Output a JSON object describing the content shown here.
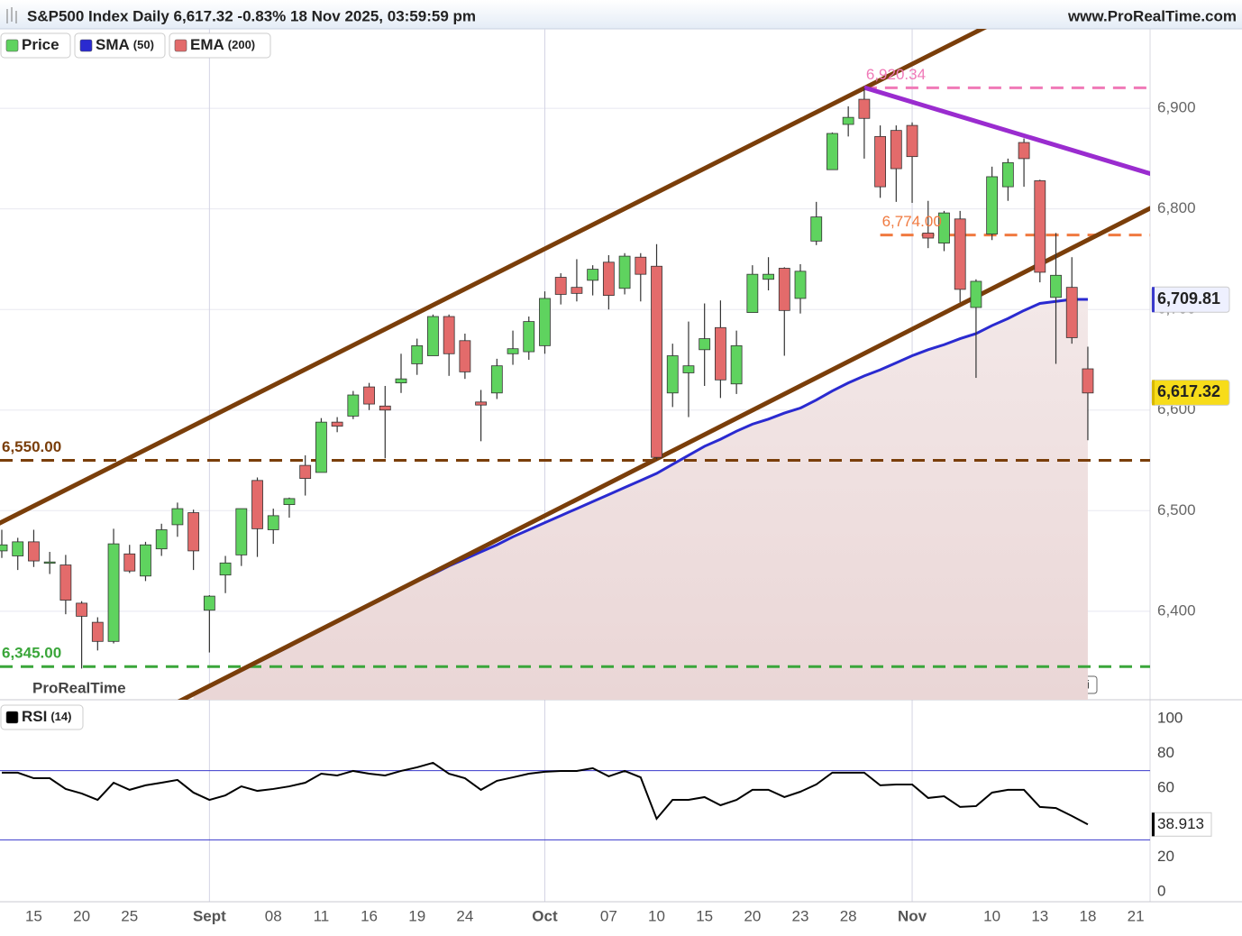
{
  "header": {
    "title": "S&P500 Index Daily 6,617.32 -0.83% 18 Nov 2025, 03:59:59 pm",
    "site": "www.ProRealTime.com"
  },
  "chart_data": [
    {
      "type": "candlestick",
      "watermark": "ProRealTime",
      "grid": true,
      "categories": [
        null,
        null,
        "15",
        null,
        null,
        "20",
        null,
        null,
        "25",
        null,
        null,
        null,
        null,
        "Sept",
        null,
        null,
        null,
        "08",
        null,
        null,
        "11",
        null,
        null,
        "16",
        null,
        null,
        "19",
        null,
        null,
        "24",
        null,
        null,
        null,
        null,
        "Oct",
        null,
        null,
        null,
        "07",
        null,
        null,
        "10",
        null,
        null,
        "15",
        null,
        null,
        "20",
        null,
        null,
        "23",
        null,
        null,
        "28",
        null,
        null,
        null,
        "Nov",
        null,
        null,
        null,
        null,
        "10",
        null,
        null,
        "13",
        null,
        null,
        "18",
        null,
        null,
        "21"
      ],
      "ylim": [
        6312,
        6979
      ],
      "yticks": [
        {
          "value": 6400,
          "label": "6,400"
        },
        {
          "value": 6500,
          "label": "6,500"
        },
        {
          "value": 6600,
          "label": "6,600"
        },
        {
          "value": 6700,
          "label": "6,700"
        },
        {
          "value": 6800,
          "label": "6,800"
        },
        {
          "value": 6900,
          "label": "6,900"
        }
      ],
      "series": [
        {
          "name": "Price",
          "type": "candlestick",
          "up_color": "#5fd35f",
          "down_color": "#e36b6b",
          "color": "#5fd35f",
          "values": [
            [
              6460,
              6481,
              6453,
              6466
            ],
            [
              6455,
              6473,
              6441,
              6469
            ],
            [
              6469,
              6481,
              6444,
              6450
            ],
            [
              6448,
              6459,
              6437,
              6449
            ],
            [
              6446,
              6456,
              6397,
              6411
            ],
            [
              6408,
              6410,
              6343,
              6395
            ],
            [
              6389,
              6394,
              6361,
              6370
            ],
            [
              6370,
              6482,
              6368,
              6467
            ],
            [
              6457,
              6466,
              6438,
              6440
            ],
            [
              6435,
              6469,
              6430,
              6466
            ],
            [
              6462,
              6487,
              6455,
              6481
            ],
            [
              6486,
              6508,
              6474,
              6502
            ],
            [
              6498,
              6501,
              6441,
              6460
            ],
            [
              6401,
              6416,
              6359,
              6415
            ],
            [
              6436,
              6455,
              6418,
              6448
            ],
            [
              6456,
              6502,
              6445,
              6502
            ],
            [
              6530,
              6533,
              6454,
              6482
            ],
            [
              6481,
              6502,
              6467,
              6495
            ],
            [
              6506,
              6513,
              6493,
              6512
            ],
            [
              6545,
              6555,
              6515,
              6532
            ],
            [
              6538,
              6592,
              6538,
              6588
            ],
            [
              6588,
              6593,
              6578,
              6584
            ],
            [
              6594,
              6619,
              6591,
              6615
            ],
            [
              6623,
              6627,
              6600,
              6606
            ],
            [
              6604,
              6624,
              6552,
              6600
            ],
            [
              6627,
              6656,
              6617,
              6631
            ],
            [
              6646,
              6671,
              6635,
              6664
            ],
            [
              6654,
              6695,
              6654,
              6693
            ],
            [
              6693,
              6695,
              6634,
              6656
            ],
            [
              6669,
              6676,
              6631,
              6638
            ],
            [
              6608,
              6620,
              6569,
              6605
            ],
            [
              6617,
              6651,
              6611,
              6644
            ],
            [
              6656,
              6679,
              6645,
              6661
            ],
            [
              6658,
              6693,
              6650,
              6688
            ],
            [
              6664,
              6718,
              6656,
              6711
            ],
            [
              6732,
              6736,
              6705,
              6715
            ],
            [
              6722,
              6750,
              6708,
              6716
            ],
            [
              6729,
              6744,
              6714,
              6740
            ],
            [
              6747,
              6754,
              6700,
              6714
            ],
            [
              6721,
              6756,
              6715,
              6753
            ],
            [
              6752,
              6756,
              6708,
              6735
            ],
            [
              6743,
              6765,
              6551,
              6553
            ],
            [
              6617,
              6666,
              6603,
              6654
            ],
            [
              6637,
              6688,
              6593,
              6644
            ],
            [
              6660,
              6706,
              6624,
              6671
            ],
            [
              6682,
              6709,
              6612,
              6630
            ],
            [
              6626,
              6679,
              6616,
              6664
            ],
            [
              6697,
              6744,
              6697,
              6735
            ],
            [
              6730,
              6752,
              6719,
              6735
            ],
            [
              6741,
              6742,
              6654,
              6699
            ],
            [
              6711,
              6745,
              6696,
              6738
            ],
            [
              6768,
              6807,
              6764,
              6792
            ],
            [
              6839,
              6876,
              6839,
              6875
            ],
            [
              6884,
              6902,
              6872,
              6891
            ],
            [
              6909,
              6920,
              6850,
              6890
            ],
            [
              6872,
              6883,
              6811,
              6822
            ],
            [
              6878,
              6883,
              6807,
              6840
            ],
            [
              6883,
              6886,
              6806,
              6852
            ],
            [
              6776,
              6808,
              6761,
              6771
            ],
            [
              6766,
              6798,
              6758,
              6796
            ],
            [
              6790,
              6798,
              6707,
              6720
            ],
            [
              6702,
              6730,
              6632,
              6728
            ],
            [
              6775,
              6842,
              6769,
              6832
            ],
            [
              6822,
              6850,
              6808,
              6846
            ],
            [
              6866,
              6870,
              6822,
              6850
            ],
            [
              6828,
              6829,
              6727,
              6737
            ],
            [
              6712,
              6776,
              6646,
              6734
            ],
            [
              6722,
              6752,
              6666,
              6672
            ],
            [
              6641,
              6663,
              6570,
              6617
            ],
            null,
            null,
            null
          ]
        },
        {
          "name": "SMA",
          "param": "(50)",
          "color": "#2a2ad0",
          "values": [
            null,
            null,
            null,
            null,
            null,
            null,
            null,
            null,
            null,
            null,
            null,
            null,
            6318,
            6325,
            6333,
            6341,
            6349,
            6357,
            6365,
            6374,
            6382,
            6390,
            6399,
            6407,
            6415,
            6422,
            6430,
            6437,
            6445,
            6452,
            6459,
            6466,
            6474,
            6481,
            6488,
            6495,
            6502,
            6509,
            6516,
            6523,
            6530,
            6537,
            6546,
            6555,
            6564,
            6571,
            6579,
            6586,
            6591,
            6597,
            6602,
            6610,
            6619,
            6627,
            6634,
            6640,
            6647,
            6654,
            6660,
            6665,
            6671,
            6676,
            6684,
            6691,
            6699,
            6706,
            6708,
            6710,
            6710,
            null,
            null,
            null
          ]
        },
        {
          "name": "EMA",
          "param": "(200)",
          "color": "#e36b6b"
        }
      ],
      "hlines": [
        {
          "value": 6550,
          "label": "6,550.00",
          "color": "#7a3e0a"
        },
        {
          "value": 6345,
          "label": "6,345.00",
          "color": "#3aa63a"
        },
        {
          "value": 6920.34,
          "label": "6,920.34",
          "color": "#f07ab8",
          "start": 54
        },
        {
          "value": 6774,
          "label": "6,774.00",
          "color": "#f07a40",
          "start": 55
        }
      ],
      "trendlines": [
        {
          "color": "#7a3e0a",
          "points": [
            [
              0,
              6488.7
            ],
            [
              61,
              6976
            ]
          ]
        },
        {
          "color": "#7a3e0a",
          "points": [
            [
              12,
              6317.6
            ],
            [
              72,
              6801.4
            ]
          ]
        },
        {
          "color": "#9a2ccf",
          "points": [
            [
              54,
              6920.6
            ],
            [
              72,
              6834.6
            ]
          ]
        }
      ],
      "flags": [
        {
          "value": 6709.81,
          "label": "6,709.81",
          "color": "#3a3acc",
          "bg": "#eef0ff"
        },
        {
          "value": 6617.32,
          "label": "6,617.32",
          "color": "#d8b800",
          "bg": "#f7dc1a"
        }
      ]
    },
    {
      "type": "line",
      "title": "RSI",
      "param": "(14)",
      "color": "#000000",
      "ylim": [
        -5.7,
        110.9
      ],
      "yticks": [
        0,
        20,
        40,
        60,
        80,
        100
      ],
      "hlines": [
        {
          "value": 70,
          "color": "#3a3acc"
        },
        {
          "value": 30,
          "color": "#3a3acc"
        }
      ],
      "values": [
        68.8,
        68.8,
        65.6,
        65.6,
        59.4,
        56.8,
        53.1,
        63,
        58.9,
        61.5,
        63,
        64.6,
        57.3,
        53.1,
        55.7,
        60.9,
        58.3,
        59.4,
        60.9,
        63,
        68.2,
        67.2,
        69.8,
        68.2,
        67.2,
        69.8,
        71.9,
        74.5,
        68.2,
        65.6,
        58.9,
        64.1,
        66.1,
        68.2,
        69.3,
        69.8,
        69.8,
        71.4,
        66.7,
        69.8,
        66.1,
        42.2,
        53.1,
        53.1,
        54.7,
        50,
        53.1,
        58.9,
        58.9,
        54.7,
        57.8,
        62,
        68.8,
        68.8,
        68.8,
        61.5,
        62,
        62,
        54.2,
        55.2,
        49,
        49.5,
        57.3,
        58.9,
        58.9,
        49,
        48.4,
        43.8,
        38.913,
        null,
        null,
        null
      ]
    }
  ]
}
